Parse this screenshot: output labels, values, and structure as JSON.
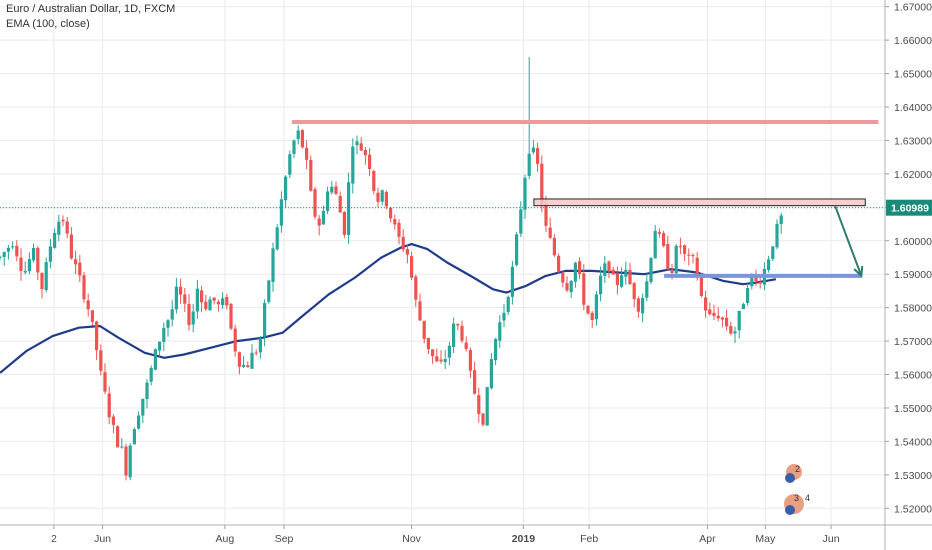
{
  "chart_data": {
    "type": "candlestick",
    "title": "Euro / Australian Dollar, 1D, FXCM",
    "indicator_label": "EMA (100, close)",
    "ylim": [
      1.515,
      1.672
    ],
    "y_ticks": [
      "1.67000",
      "1.66000",
      "1.65000",
      "1.64000",
      "1.63000",
      "1.62000",
      "1.61000",
      "1.60000",
      "1.59000",
      "1.58000",
      "1.57000",
      "1.56000",
      "1.55000",
      "1.54000",
      "1.53000",
      "1.52000"
    ],
    "x_ticks": [
      {
        "label": "2",
        "x": 0.11,
        "bold": false
      },
      {
        "label": "Jun",
        "x": 0.48,
        "bold": false
      },
      {
        "label": "Aug",
        "x": 1.41,
        "bold": false
      },
      {
        "label": "Sep",
        "x": 1.86,
        "bold": false
      },
      {
        "label": "Nov",
        "x": 2.83,
        "bold": false
      },
      {
        "label": "2019",
        "x": 3.68,
        "bold": true
      },
      {
        "label": "Feb",
        "x": 4.18,
        "bold": false
      },
      {
        "label": "Apr",
        "x": 5.08,
        "bold": false
      },
      {
        "label": "May",
        "x": 5.52,
        "bold": false
      },
      {
        "label": "Jun",
        "x": 6.02,
        "bold": false
      }
    ],
    "x_range": [
      -0.3,
      6.43
    ],
    "current_price": {
      "label": "1.60989",
      "value": 1.60989
    },
    "price_path": [
      [
        -0.3,
        1.595
      ],
      [
        -0.2,
        1.6
      ],
      [
        -0.12,
        1.59
      ],
      [
        -0.05,
        1.597
      ],
      [
        0.02,
        1.586
      ],
      [
        0.1,
        1.602
      ],
      [
        0.17,
        1.608
      ],
      [
        0.24,
        1.596
      ],
      [
        0.31,
        1.588
      ],
      [
        0.37,
        1.58
      ],
      [
        0.42,
        1.571
      ],
      [
        0.47,
        1.559
      ],
      [
        0.52,
        1.55
      ],
      [
        0.58,
        1.541
      ],
      [
        0.63,
        1.537
      ],
      [
        0.66,
        1.531
      ],
      [
        0.7,
        1.542
      ],
      [
        0.76,
        1.55
      ],
      [
        0.82,
        1.557
      ],
      [
        0.88,
        1.566
      ],
      [
        0.94,
        1.574
      ],
      [
        1.0,
        1.578
      ],
      [
        1.05,
        1.586
      ],
      [
        1.1,
        1.58
      ],
      [
        1.15,
        1.575
      ],
      [
        1.2,
        1.586
      ],
      [
        1.25,
        1.58
      ],
      [
        1.31,
        1.583
      ],
      [
        1.37,
        1.58
      ],
      [
        1.42,
        1.583
      ],
      [
        1.47,
        1.57
      ],
      [
        1.52,
        1.564
      ],
      [
        1.57,
        1.562
      ],
      [
        1.62,
        1.566
      ],
      [
        1.67,
        1.568
      ],
      [
        1.72,
        1.582
      ],
      [
        1.78,
        1.598
      ],
      [
        1.84,
        1.612
      ],
      [
        1.9,
        1.625
      ],
      [
        1.96,
        1.633
      ],
      [
        2.02,
        1.626
      ],
      [
        2.08,
        1.609
      ],
      [
        2.14,
        1.604
      ],
      [
        2.2,
        1.618
      ],
      [
        2.26,
        1.613
      ],
      [
        2.32,
        1.603
      ],
      [
        2.38,
        1.63
      ],
      [
        2.44,
        1.628
      ],
      [
        2.5,
        1.625
      ],
      [
        2.56,
        1.612
      ],
      [
        2.62,
        1.614
      ],
      [
        2.68,
        1.606
      ],
      [
        2.74,
        1.6
      ],
      [
        2.8,
        1.596
      ],
      [
        2.86,
        1.582
      ],
      [
        2.92,
        1.572
      ],
      [
        2.98,
        1.566
      ],
      [
        3.04,
        1.562
      ],
      [
        3.1,
        1.566
      ],
      [
        3.16,
        1.576
      ],
      [
        3.22,
        1.571
      ],
      [
        3.28,
        1.559
      ],
      [
        3.34,
        1.55
      ],
      [
        3.38,
        1.546
      ],
      [
        3.43,
        1.563
      ],
      [
        3.48,
        1.573
      ],
      [
        3.54,
        1.58
      ],
      [
        3.6,
        1.592
      ],
      [
        3.66,
        1.61
      ],
      [
        3.72,
        1.628
      ],
      [
        3.78,
        1.625
      ],
      [
        3.84,
        1.605
      ],
      [
        3.9,
        1.598
      ],
      [
        3.96,
        1.59
      ],
      [
        4.02,
        1.586
      ],
      [
        4.08,
        1.594
      ],
      [
        4.14,
        1.582
      ],
      [
        4.2,
        1.575
      ],
      [
        4.26,
        1.588
      ],
      [
        4.32,
        1.594
      ],
      [
        4.38,
        1.586
      ],
      [
        4.44,
        1.592
      ],
      [
        4.5,
        1.586
      ],
      [
        4.56,
        1.58
      ],
      [
        4.62,
        1.588
      ],
      [
        4.68,
        1.604
      ],
      [
        4.74,
        1.598
      ],
      [
        4.8,
        1.59
      ],
      [
        4.86,
        1.6
      ],
      [
        4.92,
        1.594
      ],
      [
        4.98,
        1.594
      ],
      [
        5.04,
        1.582
      ],
      [
        5.1,
        1.577
      ],
      [
        5.16,
        1.578
      ],
      [
        5.22,
        1.575
      ],
      [
        5.28,
        1.572
      ],
      [
        5.34,
        1.58
      ],
      [
        5.4,
        1.59
      ],
      [
        5.46,
        1.587
      ],
      [
        5.52,
        1.592
      ],
      [
        5.58,
        1.6
      ],
      [
        5.63,
        1.606
      ],
      [
        5.67,
        1.609
      ]
    ],
    "ema_points": [
      [
        -0.3,
        1.5605
      ],
      [
        -0.1,
        1.567
      ],
      [
        0.1,
        1.5715
      ],
      [
        0.3,
        1.574
      ],
      [
        0.46,
        1.5745
      ],
      [
        0.6,
        1.571
      ],
      [
        0.8,
        1.5665
      ],
      [
        0.95,
        1.565
      ],
      [
        1.1,
        1.566
      ],
      [
        1.3,
        1.568
      ],
      [
        1.5,
        1.57
      ],
      [
        1.7,
        1.571
      ],
      [
        1.85,
        1.5725
      ],
      [
        2.0,
        1.5775
      ],
      [
        2.2,
        1.584
      ],
      [
        2.4,
        1.589
      ],
      [
        2.6,
        1.595
      ],
      [
        2.75,
        1.598
      ],
      [
        2.83,
        1.599
      ],
      [
        2.95,
        1.5975
      ],
      [
        3.1,
        1.5935
      ],
      [
        3.3,
        1.589
      ],
      [
        3.45,
        1.5855
      ],
      [
        3.55,
        1.5845
      ],
      [
        3.7,
        1.5865
      ],
      [
        3.85,
        1.5895
      ],
      [
        4.0,
        1.591
      ],
      [
        4.2,
        1.591
      ],
      [
        4.4,
        1.5905
      ],
      [
        4.6,
        1.59
      ],
      [
        4.8,
        1.5915
      ],
      [
        5.0,
        1.5905
      ],
      [
        5.2,
        1.588
      ],
      [
        5.35,
        1.587
      ],
      [
        5.45,
        1.5875
      ],
      [
        5.6,
        1.5885
      ]
    ],
    "annotations": {
      "red_line": {
        "x1": 1.92,
        "x2": 6.38,
        "y": 1.6355
      },
      "resistance_box": {
        "x1": 3.76,
        "x2": 6.28,
        "y_top": 1.6125,
        "y_bottom": 1.6105
      },
      "blue_line": {
        "x1": 4.75,
        "x2": 6.25,
        "y": 1.5895
      },
      "arrow_tip": {
        "x": 6.25,
        "y": 1.5895
      },
      "arrow_start": {
        "x": 6.05,
        "y": 1.6105
      }
    },
    "badges": [
      "2",
      "3",
      "4"
    ],
    "colors": {
      "up": "#26a69a",
      "down": "#ef5350",
      "ema": "#1f3b8a",
      "red_line": "#ef9a9a",
      "box_fill": "#f8c8c8",
      "box_stroke": "#202020",
      "blue_line": "#7a95d9",
      "arrow": "#2e7d6e",
      "price_line": "#1a8a7a",
      "price_label_bg": "#1a8a7a",
      "grid": "#eaeaea",
      "axis_text": "#4a4a4a"
    }
  }
}
